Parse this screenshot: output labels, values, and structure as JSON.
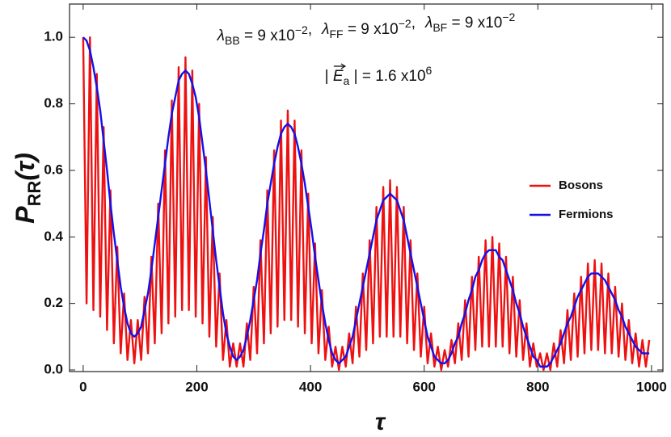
{
  "chart_data": {
    "type": "line",
    "annotation": {
      "line1": [
        {
          "sym": "λ",
          "sub": "BB",
          "eq": " = 9 x10",
          "sup": "−2",
          "sep": ","
        },
        {
          "sym": "λ",
          "sub": "FF",
          "eq": " = 9 x10",
          "sup": "−2",
          "sep": ","
        },
        {
          "sym": "λ",
          "sub": "BF",
          "eq": " = 9 x10",
          "sup": "−2"
        }
      ],
      "line2": {
        "pre": "| ",
        "sym": "E",
        "sub": "a",
        "eq": " | = 1.6 x10",
        "sup": "6"
      }
    },
    "xlabel": "τ",
    "ylabel": {
      "sym": "P",
      "sub": "RR",
      "arg": "(τ)"
    },
    "xlim": [
      -24,
      1020
    ],
    "ylim": [
      0,
      1.1
    ],
    "xticks": [
      0,
      200,
      400,
      600,
      800,
      1000
    ],
    "yticks": [
      {
        "value": 0,
        "label": "0.0"
      },
      {
        "value": 0.2,
        "label": "0.2"
      },
      {
        "value": 0.4,
        "label": "0.4"
      },
      {
        "value": 0.6,
        "label": "0.6"
      },
      {
        "value": 0.8,
        "label": "0.8"
      },
      {
        "value": 1.0,
        "label": "1.0"
      }
    ],
    "legend": "right",
    "x": [
      0,
      6,
      12,
      18,
      24,
      30,
      36,
      42,
      48,
      54,
      60,
      66,
      72,
      78,
      84,
      90,
      96,
      102,
      108,
      114,
      120,
      126,
      132,
      138,
      144,
      150,
      156,
      162,
      168,
      174,
      180,
      186,
      192,
      198,
      204,
      210,
      216,
      222,
      228,
      234,
      240,
      246,
      252,
      258,
      264,
      270,
      276,
      282,
      288,
      294,
      300,
      306,
      312,
      318,
      324,
      330,
      336,
      342,
      348,
      354,
      360,
      366,
      372,
      378,
      384,
      390,
      396,
      402,
      408,
      414,
      420,
      426,
      432,
      438,
      444,
      450,
      456,
      462,
      468,
      474,
      480,
      486,
      492,
      498,
      504,
      510,
      516,
      522,
      528,
      534,
      540,
      546,
      552,
      558,
      564,
      570,
      576,
      582,
      588,
      594,
      600,
      606,
      612,
      618,
      624,
      630,
      636,
      642,
      648,
      654,
      660,
      666,
      672,
      678,
      684,
      690,
      696,
      702,
      708,
      714,
      720,
      726,
      732,
      738,
      744,
      750,
      756,
      762,
      768,
      774,
      780,
      786,
      792,
      798,
      804,
      810,
      816,
      822,
      828,
      834,
      840,
      846,
      852,
      858,
      864,
      870,
      876,
      882,
      888,
      894,
      900,
      906,
      912,
      918,
      924,
      930,
      936,
      942,
      948,
      954,
      960,
      966,
      972,
      978,
      984,
      990,
      996
    ],
    "series": [
      {
        "name": "Bosons",
        "color": "#ee1111",
        "values": [
          1.0,
          0.2,
          1.0,
          0.18,
          0.89,
          0.16,
          0.73,
          0.12,
          0.54,
          0.08,
          0.37,
          0.05,
          0.23,
          0.03,
          0.15,
          0.02,
          0.15,
          0.03,
          0.22,
          0.05,
          0.34,
          0.08,
          0.5,
          0.11,
          0.66,
          0.14,
          0.81,
          0.16,
          0.91,
          0.18,
          0.94,
          0.18,
          0.9,
          0.16,
          0.8,
          0.14,
          0.64,
          0.1,
          0.46,
          0.07,
          0.29,
          0.03,
          0.15,
          0.01,
          0.08,
          0.01,
          0.08,
          0.01,
          0.14,
          0.03,
          0.25,
          0.05,
          0.39,
          0.08,
          0.54,
          0.11,
          0.66,
          0.13,
          0.75,
          0.15,
          0.78,
          0.15,
          0.75,
          0.13,
          0.66,
          0.11,
          0.53,
          0.08,
          0.38,
          0.05,
          0.24,
          0.03,
          0.13,
          0.01,
          0.07,
          0.0,
          0.07,
          0.01,
          0.11,
          0.02,
          0.19,
          0.04,
          0.29,
          0.06,
          0.39,
          0.08,
          0.49,
          0.1,
          0.55,
          0.1,
          0.57,
          0.1,
          0.55,
          0.1,
          0.49,
          0.08,
          0.39,
          0.06,
          0.29,
          0.04,
          0.19,
          0.02,
          0.11,
          0.01,
          0.07,
          0.0,
          0.06,
          0.01,
          0.09,
          0.02,
          0.14,
          0.03,
          0.21,
          0.04,
          0.28,
          0.06,
          0.34,
          0.07,
          0.39,
          0.07,
          0.4,
          0.07,
          0.38,
          0.07,
          0.34,
          0.05,
          0.28,
          0.04,
          0.21,
          0.03,
          0.14,
          0.01,
          0.08,
          0.01,
          0.05,
          0.0,
          0.05,
          0.0,
          0.08,
          0.01,
          0.12,
          0.02,
          0.18,
          0.03,
          0.23,
          0.04,
          0.28,
          0.05,
          0.32,
          0.06,
          0.33,
          0.06,
          0.32,
          0.05,
          0.29,
          0.05,
          0.25,
          0.04,
          0.2,
          0.03,
          0.15,
          0.02,
          0.11,
          0.01,
          0.09,
          0.01,
          0.09
        ]
      },
      {
        "name": "Fermions",
        "color": "#1111ee",
        "values": [
          1.0,
          0.99,
          0.96,
          0.91,
          0.85,
          0.78,
          0.69,
          0.6,
          0.5,
          0.41,
          0.33,
          0.25,
          0.19,
          0.14,
          0.11,
          0.1,
          0.11,
          0.13,
          0.18,
          0.23,
          0.3,
          0.38,
          0.46,
          0.54,
          0.62,
          0.7,
          0.77,
          0.82,
          0.87,
          0.89,
          0.9,
          0.89,
          0.86,
          0.82,
          0.76,
          0.68,
          0.6,
          0.51,
          0.42,
          0.33,
          0.25,
          0.17,
          0.11,
          0.07,
          0.04,
          0.03,
          0.04,
          0.06,
          0.1,
          0.15,
          0.21,
          0.27,
          0.35,
          0.42,
          0.5,
          0.56,
          0.62,
          0.67,
          0.71,
          0.73,
          0.74,
          0.73,
          0.71,
          0.67,
          0.62,
          0.56,
          0.49,
          0.42,
          0.34,
          0.27,
          0.2,
          0.14,
          0.09,
          0.05,
          0.03,
          0.02,
          0.03,
          0.04,
          0.07,
          0.1,
          0.15,
          0.2,
          0.25,
          0.3,
          0.35,
          0.4,
          0.45,
          0.48,
          0.51,
          0.52,
          0.53,
          0.52,
          0.51,
          0.48,
          0.45,
          0.4,
          0.35,
          0.3,
          0.25,
          0.2,
          0.15,
          0.1,
          0.07,
          0.04,
          0.03,
          0.02,
          0.02,
          0.03,
          0.05,
          0.08,
          0.1,
          0.14,
          0.17,
          0.21,
          0.24,
          0.28,
          0.3,
          0.33,
          0.35,
          0.36,
          0.36,
          0.36,
          0.34,
          0.33,
          0.3,
          0.27,
          0.24,
          0.2,
          0.17,
          0.13,
          0.1,
          0.07,
          0.04,
          0.03,
          0.01,
          0.01,
          0.01,
          0.02,
          0.04,
          0.06,
          0.08,
          0.11,
          0.14,
          0.16,
          0.19,
          0.22,
          0.24,
          0.26,
          0.28,
          0.29,
          0.29,
          0.29,
          0.28,
          0.27,
          0.25,
          0.23,
          0.21,
          0.18,
          0.16,
          0.13,
          0.11,
          0.09,
          0.07,
          0.06,
          0.05,
          0.05,
          0.05
        ]
      }
    ]
  }
}
